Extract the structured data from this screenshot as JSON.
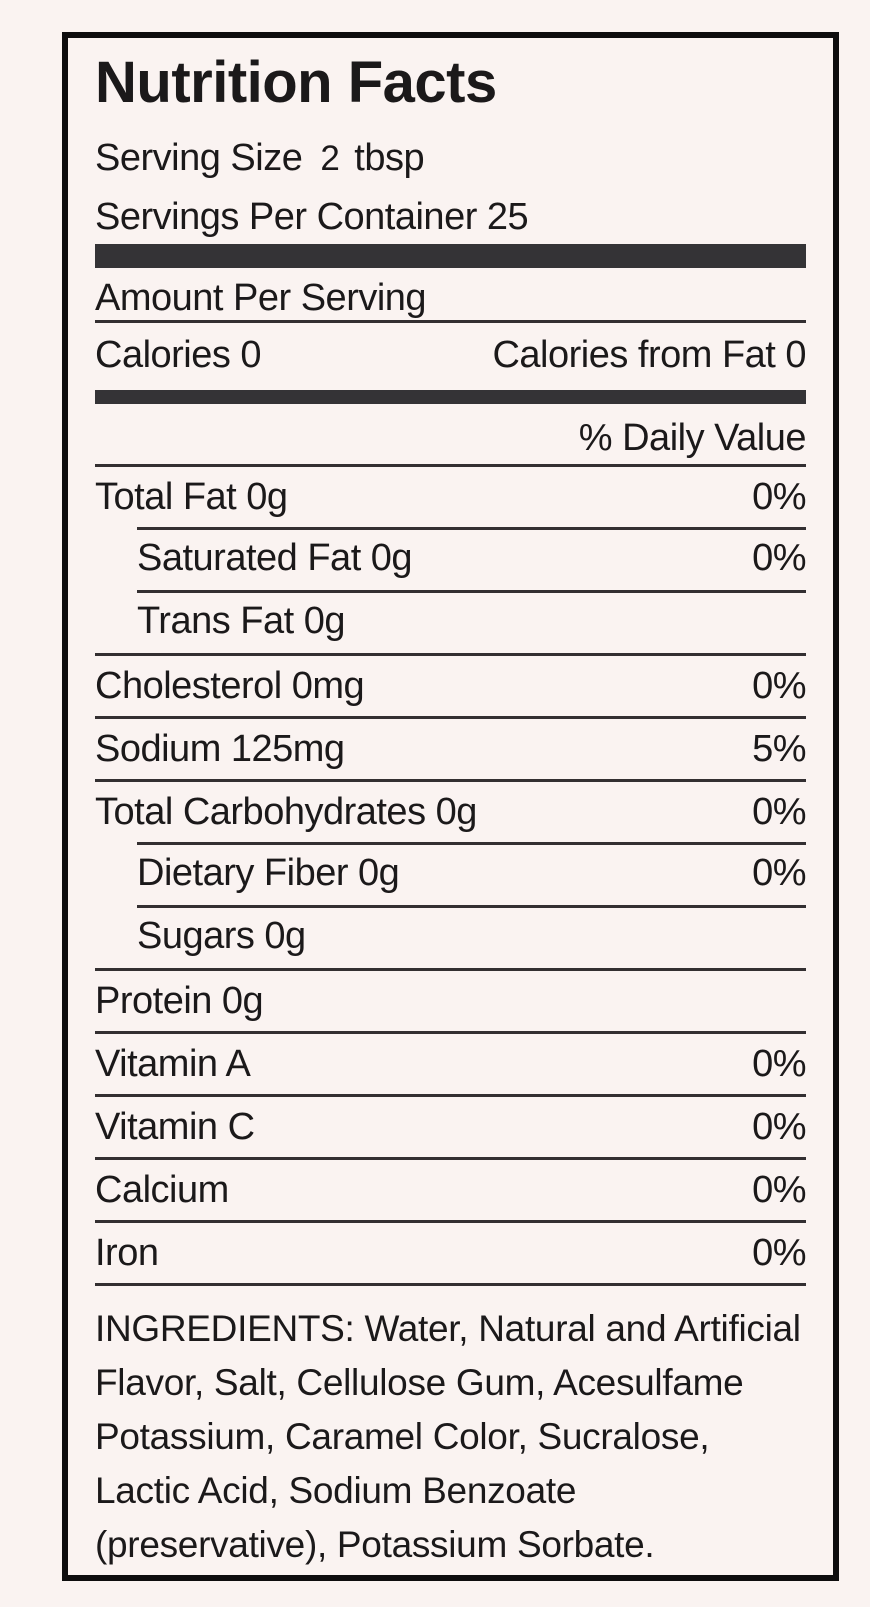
{
  "theme": {
    "page-bg": "#faf3f1",
    "ink": "#1b191a",
    "rule": "#332f31",
    "bar": "#343336",
    "border": "#0e0d0e"
  },
  "label": {
    "title": "Nutrition Facts",
    "serving": {
      "size_label": "Serving Size",
      "size_value": "2",
      "size_unit": "tbsp",
      "per_container_label": "Servings Per Container",
      "per_container_value": "25"
    },
    "amount_per_serving_heading": "Amount Per Serving",
    "calories": {
      "label": "Calories",
      "value": "0",
      "from_fat_label": "Calories from Fat",
      "from_fat_value": "0"
    },
    "daily_value_heading": "% Daily Value",
    "nutrients": [
      {
        "name": "Total Fat",
        "amount": "0g",
        "dv": "0%",
        "indent": false
      },
      {
        "name": "Saturated Fat",
        "amount": "0g",
        "dv": "0%",
        "indent": true
      },
      {
        "name": "Trans Fat",
        "amount": "0g",
        "dv": "",
        "indent": true
      },
      {
        "name": "Cholesterol",
        "amount": "0mg",
        "dv": "0%",
        "indent": false
      },
      {
        "name": "Sodium",
        "amount": "125mg",
        "dv": "5%",
        "indent": false
      },
      {
        "name": "Total Carbohydrates",
        "amount": "0g",
        "dv": "0%",
        "indent": false
      },
      {
        "name": "Dietary Fiber",
        "amount": "0g",
        "dv": "0%",
        "indent": true
      },
      {
        "name": "Sugars",
        "amount": "0g",
        "dv": "",
        "indent": true
      },
      {
        "name": "Protein",
        "amount": "0g",
        "dv": "",
        "indent": false
      },
      {
        "name": "Vitamin A",
        "amount": "",
        "dv": "0%",
        "indent": false
      },
      {
        "name": "Vitamin C",
        "amount": "",
        "dv": "0%",
        "indent": false
      },
      {
        "name": "Calcium",
        "amount": "",
        "dv": "0%",
        "indent": false
      },
      {
        "name": "Iron",
        "amount": "",
        "dv": "0%",
        "indent": false
      }
    ],
    "ingredients_text": "INGREDIENTS: Water, Natural and Artificial Flavor, Salt, Cellulose Gum, Acesulfame Potassium, Caramel Color, Sucralose, Lactic Acid, Sodium Benzoate (preservative), Potassium Sorbate."
  }
}
